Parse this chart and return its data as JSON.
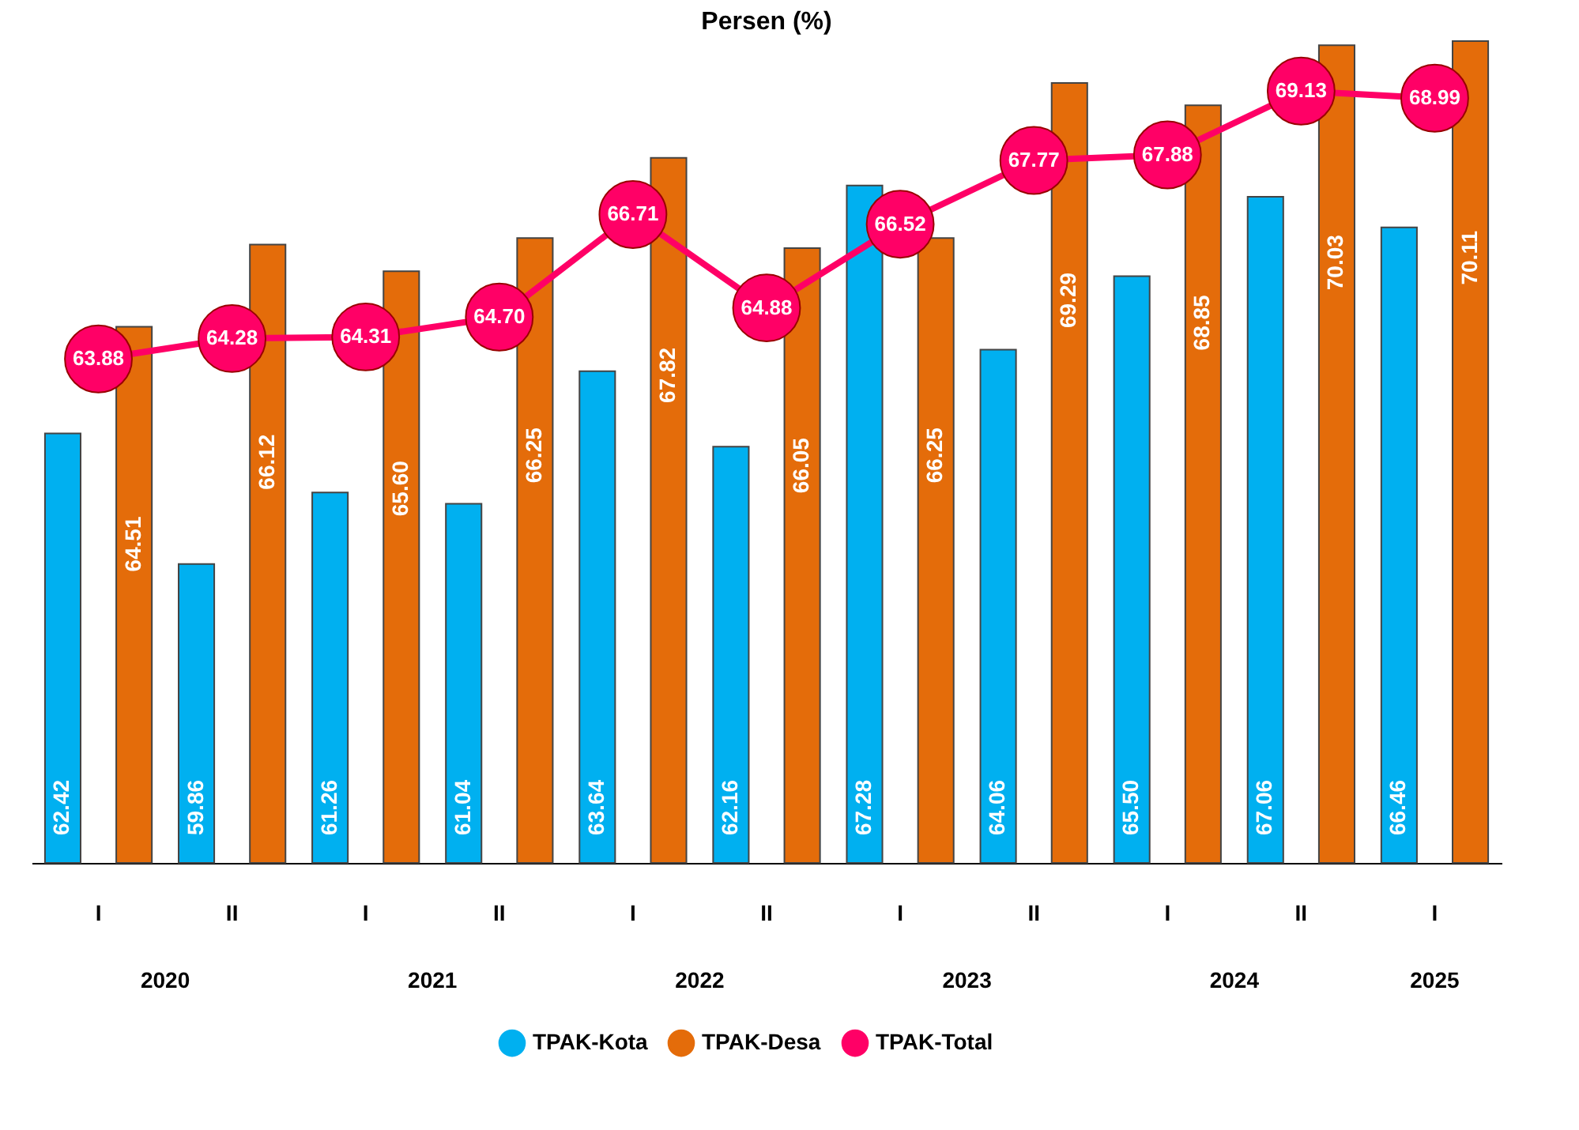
{
  "chart_data": {
    "type": "bar",
    "title": "Persen (%)",
    "categories": [
      "I",
      "II",
      "I",
      "II",
      "I",
      "II",
      "I",
      "II",
      "I",
      "II",
      "I"
    ],
    "series": [
      {
        "name": "TPAK-Kota",
        "color": "#00b0f0",
        "values": [
          62.42,
          59.86,
          61.26,
          61.04,
          63.64,
          62.16,
          67.28,
          64.06,
          65.5,
          67.06,
          66.46
        ],
        "value_labels": [
          "62.42",
          "59.86",
          "61.26",
          "61.04",
          "63.64",
          "62.16",
          "67.28",
          "64.06",
          "65.50",
          "67.06",
          "66.46"
        ]
      },
      {
        "name": "TPAK-Desa",
        "color": "#e46c0a",
        "values": [
          64.51,
          66.12,
          65.6,
          66.25,
          67.82,
          66.05,
          66.25,
          69.29,
          68.85,
          70.03,
          70.11
        ],
        "value_labels": [
          "64.51",
          "66.12",
          "65.60",
          "66.25",
          "67.82",
          "66.05",
          "66.25",
          "69.29",
          "68.85",
          "70.03",
          "70.11"
        ]
      },
      {
        "name": "TPAK-Total",
        "type": "line",
        "color": "#ff0066",
        "marker": "circle",
        "line_style": "solid",
        "values": [
          63.88,
          64.28,
          64.31,
          64.7,
          66.71,
          64.88,
          66.52,
          67.77,
          67.88,
          69.13,
          68.99
        ],
        "value_labels": [
          "63.88",
          "64.28",
          "64.31",
          "64.70",
          "66.71",
          "64.88",
          "66.52",
          "67.77",
          "67.88",
          "69.13",
          "68.99"
        ]
      }
    ],
    "annotations": [
      "2020",
      "2021",
      "2022",
      "2023",
      "2024",
      "2025"
    ],
    "ylim": [
      54,
      70.11
    ],
    "legend": "bottom",
    "grid": false
  }
}
